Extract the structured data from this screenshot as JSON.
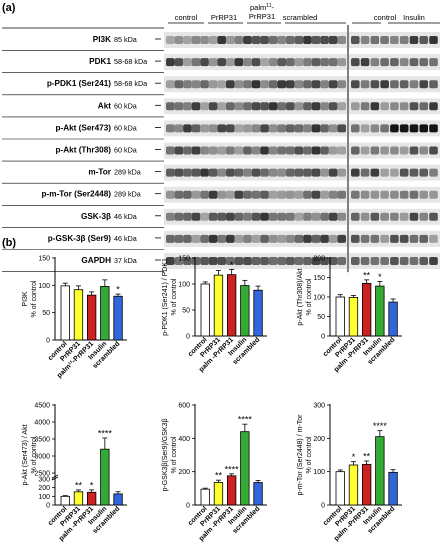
{
  "panel_a": {
    "letter": "(a)",
    "headers": [
      {
        "text": "control"
      },
      {
        "text": "PrRP31"
      },
      {
        "text": "palm",
        "sup": "11",
        "suffix": "-",
        "line2": "PrRP31"
      },
      {
        "text": "scrambled"
      },
      {
        "text": "control"
      },
      {
        "text": "Insulin"
      }
    ],
    "rows": [
      {
        "protein": "PI3K",
        "kda": "85 kDa"
      },
      {
        "protein": "PDK1",
        "kda": "58-68 kDa"
      },
      {
        "protein": "p-PDK1 (Ser241)",
        "kda": "58-68 kDa"
      },
      {
        "protein": "Akt",
        "kda": "60 kDa"
      },
      {
        "protein": "p-Akt (Ser473)",
        "kda": "60 kDa"
      },
      {
        "protein": "p-Akt (Thr308)",
        "kda": "60 kDa"
      },
      {
        "protein": "m-Tor",
        "kda": "289 kDa"
      },
      {
        "protein": "p-m-Tor (Ser2448)",
        "kda": "289 kDa"
      },
      {
        "protein": "GSK-3β",
        "kda": "46 kDa"
      },
      {
        "protein": "p-GSK-3β (Ser9)",
        "kda": "46 kDa"
      },
      {
        "protein": "GAPDH",
        "kda": "37 kDa"
      }
    ]
  },
  "panel_b": {
    "letter": "(b)"
  },
  "colors": {
    "control": "#ffffff",
    "PrRP31": "#ffff33",
    "palm-PrRP31": "#cc2222",
    "Insulin": "#33aa33",
    "scrambled": "#3366dd"
  },
  "chart_data": [
    {
      "type": "bar",
      "ylabel_lines": [
        "PI3K",
        "% of control"
      ],
      "ylim": [
        0,
        150
      ],
      "yticks": [
        "0",
        "50",
        "100",
        "150"
      ],
      "categories": [
        "control",
        "PrRP31",
        "palm¹¹-PrRP31",
        "Insulin",
        "scrambled"
      ],
      "values": [
        99,
        92,
        82,
        98,
        80
      ],
      "errors": [
        5,
        7,
        6,
        12,
        4
      ],
      "annotations": [
        "",
        "",
        "",
        "",
        "*"
      ]
    },
    {
      "type": "bar",
      "ylabel_lines": [
        "p-PDK1 (Ser241) / PDK1",
        "% of control"
      ],
      "ylim": [
        0,
        150
      ],
      "yticks": [
        "0",
        "50",
        "100",
        "150"
      ],
      "categories": [
        "control",
        "PrRP31",
        "palm -PrRP31",
        "Insulin",
        "scrambled"
      ],
      "values": [
        100,
        117,
        118,
        97,
        88
      ],
      "errors": [
        4,
        9,
        10,
        10,
        8
      ],
      "annotations": [
        "",
        "",
        "*",
        "",
        ""
      ]
    },
    {
      "type": "bar",
      "ylabel_lines": [
        "p-Akt (Thr308)/Akt",
        "% of control"
      ],
      "ylim": [
        0,
        200
      ],
      "yticks": [
        "0",
        "50",
        "100",
        "150",
        "200"
      ],
      "categories": [
        "control",
        "PrRP31",
        "palm -PrRP31",
        "Insulin",
        "scrambled"
      ],
      "values": [
        100,
        99,
        135,
        128,
        87
      ],
      "errors": [
        6,
        5,
        9,
        12,
        8
      ],
      "annotations": [
        "",
        "",
        "**",
        "*",
        ""
      ]
    },
    {
      "type": "bar",
      "ylabel_lines": [
        "p-Akt (Ser473) / Akt",
        "% of control"
      ],
      "axis_break": true,
      "yticks": [
        "0",
        "100",
        "200",
        "300",
        "2500",
        "3000",
        "3500",
        "4000",
        "4500"
      ],
      "categories": [
        "control",
        "PrRP31",
        "palm -PrRP31",
        "Insulin",
        "scrambled"
      ],
      "values": [
        100,
        152,
        147,
        3200,
        128
      ],
      "errors": [
        8,
        22,
        28,
        330,
        25
      ],
      "annotations": [
        "",
        "**",
        "*",
        "****",
        ""
      ]
    },
    {
      "type": "bar",
      "ylabel_lines": [
        "p-GSK3β(Ser9)/GSK3β",
        "% of control"
      ],
      "ylim": [
        0,
        600
      ],
      "yticks": [
        "0",
        "200",
        "400",
        "600"
      ],
      "categories": [
        "control",
        "PrRP31",
        "palm -PrRP31",
        "Insulin",
        "scrambled"
      ],
      "values": [
        95,
        135,
        175,
        440,
        135
      ],
      "errors": [
        6,
        14,
        12,
        45,
        12
      ],
      "annotations": [
        "",
        "**",
        "****",
        "****",
        ""
      ]
    },
    {
      "type": "bar",
      "ylabel_lines": [
        "p-m-Tor (Ser2448) / m-Tor",
        "% of control"
      ],
      "ylim": [
        0,
        300
      ],
      "yticks": [
        "0",
        "100",
        "200",
        "300"
      ],
      "categories": [
        "control",
        "PrRP31",
        "palm -PrRP31",
        "Insulin",
        "scrambled"
      ],
      "values": [
        100,
        120,
        122,
        205,
        98
      ],
      "errors": [
        5,
        10,
        10,
        18,
        8
      ],
      "annotations": [
        "",
        "*",
        "**",
        "****",
        ""
      ]
    }
  ]
}
